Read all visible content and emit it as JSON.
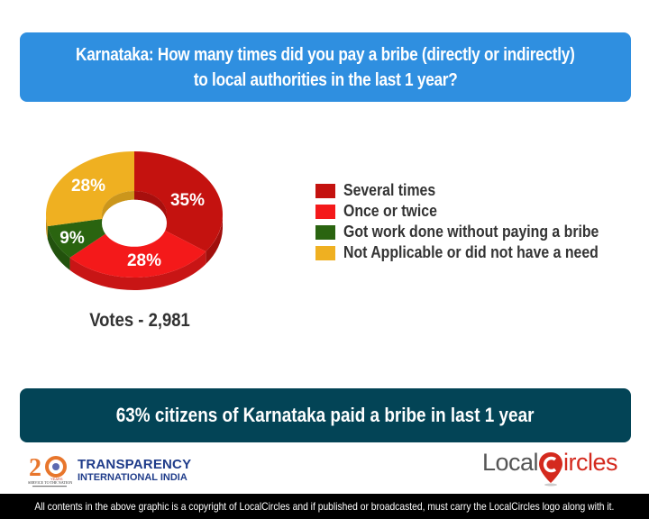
{
  "question": {
    "line1": "Karnataka: How many times did you pay a bribe (directly or indirectly)",
    "line2": "to local authorities in the last 1 year?"
  },
  "chart_data": {
    "type": "pie",
    "style": "3d-donut",
    "title": "Karnataka: How many times did you pay a bribe (directly or indirectly) to local authorities in the last 1 year?",
    "categories": [
      "Several times",
      "Once or twice",
      "Got work done without paying a bribe",
      "Not Applicable or did not have a need"
    ],
    "values": [
      35,
      28,
      9,
      28
    ],
    "unit": "%",
    "colors": [
      "#c4120f",
      "#f4191a",
      "#2a6410",
      "#efb021"
    ],
    "data_labels": [
      "35%",
      "28%",
      "9%",
      "28%"
    ],
    "legend_position": "right",
    "total_votes": "2,981"
  },
  "votes": {
    "label": "Votes - 2,981"
  },
  "legend": {
    "items": [
      {
        "label": "Several times",
        "color": "#c4120f"
      },
      {
        "label": "Once or twice",
        "color": "#f4191a"
      },
      {
        "label": "Got work done without paying a bribe",
        "color": "#2a6410"
      },
      {
        "label": "Not Applicable or did not have a need",
        "color": "#efb021"
      }
    ]
  },
  "summary": {
    "text": "63% citizens of Karnataka paid a bribe in last 1 year"
  },
  "logos": {
    "ti": {
      "number": "20",
      "line1": "TRANSPARENCY",
      "line2": "INTERNATIONAL INDIA",
      "years": "YEARS",
      "tagline": "SERVICE TO THE NATION"
    },
    "localcircles": {
      "part1": "Local",
      "part2": "ircles",
      "color_dark": "#555555",
      "color_red": "#d42a1e"
    }
  },
  "footer": {
    "text": "All contents in the above graphic is a copyright of LocalCircles and if published or broadcasted, must carry the LocalCircles logo along with it."
  }
}
